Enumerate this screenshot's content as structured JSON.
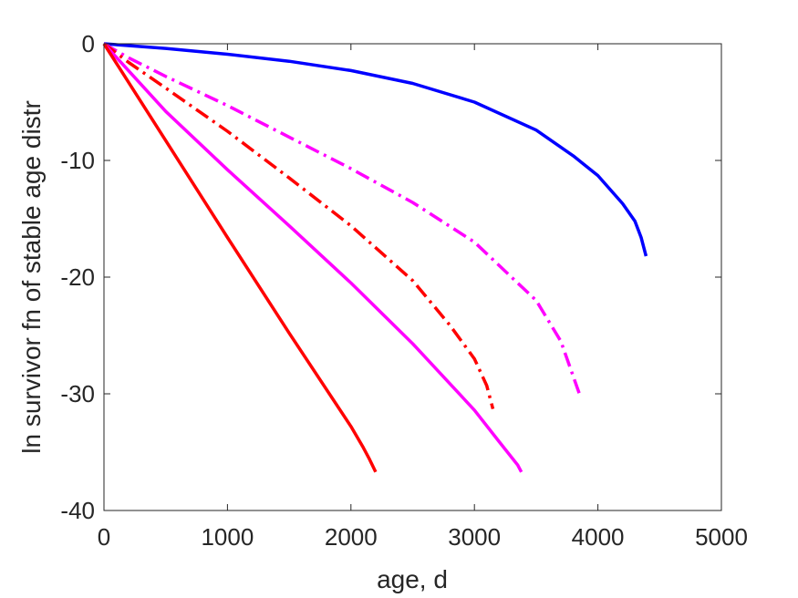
{
  "chart_data": {
    "type": "line",
    "title": "",
    "xlabel": "age, d",
    "ylabel": "ln survivor fn of stable age distr",
    "xlim": [
      0,
      5000
    ],
    "ylim": [
      -40,
      0
    ],
    "xticks": [
      0,
      1000,
      2000,
      3000,
      4000,
      5000
    ],
    "yticks": [
      0,
      -10,
      -20,
      -30,
      -40
    ],
    "grid": false,
    "legend": "none",
    "series": [
      {
        "color": "#0000ff",
        "style": "solid",
        "points": [
          [
            0,
            0
          ],
          [
            500,
            -0.4
          ],
          [
            1000,
            -0.9
          ],
          [
            1500,
            -1.5
          ],
          [
            2000,
            -2.3
          ],
          [
            2500,
            -3.4
          ],
          [
            3000,
            -5.0
          ],
          [
            3500,
            -7.4
          ],
          [
            3800,
            -9.6
          ],
          [
            4000,
            -11.3
          ],
          [
            4200,
            -13.7
          ],
          [
            4300,
            -15.2
          ],
          [
            4350,
            -16.6
          ],
          [
            4390,
            -18.2
          ]
        ]
      },
      {
        "color": "#ff00ff",
        "style": "dashdot",
        "points": [
          [
            0,
            0
          ],
          [
            200,
            -1.2
          ],
          [
            500,
            -2.8
          ],
          [
            1000,
            -5.3
          ],
          [
            1500,
            -8.0
          ],
          [
            2000,
            -10.7
          ],
          [
            2500,
            -13.6
          ],
          [
            3000,
            -17.0
          ],
          [
            3500,
            -22.0
          ],
          [
            3700,
            -25.5
          ],
          [
            3850,
            -30.0
          ]
        ]
      },
      {
        "color": "#ff0000",
        "style": "dashdot",
        "points": [
          [
            0,
            0
          ],
          [
            200,
            -1.6
          ],
          [
            500,
            -3.8
          ],
          [
            1000,
            -7.5
          ],
          [
            1500,
            -11.5
          ],
          [
            2000,
            -15.6
          ],
          [
            2500,
            -20.3
          ],
          [
            2800,
            -24.1
          ],
          [
            3000,
            -27.0
          ],
          [
            3100,
            -29.3
          ],
          [
            3150,
            -31.3
          ]
        ]
      },
      {
        "color": "#ff00ff",
        "style": "solid",
        "points": [
          [
            0,
            0
          ],
          [
            500,
            -5.8
          ],
          [
            1000,
            -10.8
          ],
          [
            1500,
            -15.6
          ],
          [
            2000,
            -20.5
          ],
          [
            2500,
            -25.7
          ],
          [
            3000,
            -31.4
          ],
          [
            3200,
            -34.1
          ],
          [
            3350,
            -36.1
          ],
          [
            3380,
            -36.7
          ]
        ]
      },
      {
        "color": "#ff0000",
        "style": "solid",
        "points": [
          [
            0,
            0
          ],
          [
            500,
            -8.3
          ],
          [
            1000,
            -16.6
          ],
          [
            1500,
            -24.8
          ],
          [
            2000,
            -32.8
          ],
          [
            2100,
            -34.6
          ],
          [
            2150,
            -35.6
          ],
          [
            2200,
            -36.7
          ]
        ]
      }
    ]
  }
}
